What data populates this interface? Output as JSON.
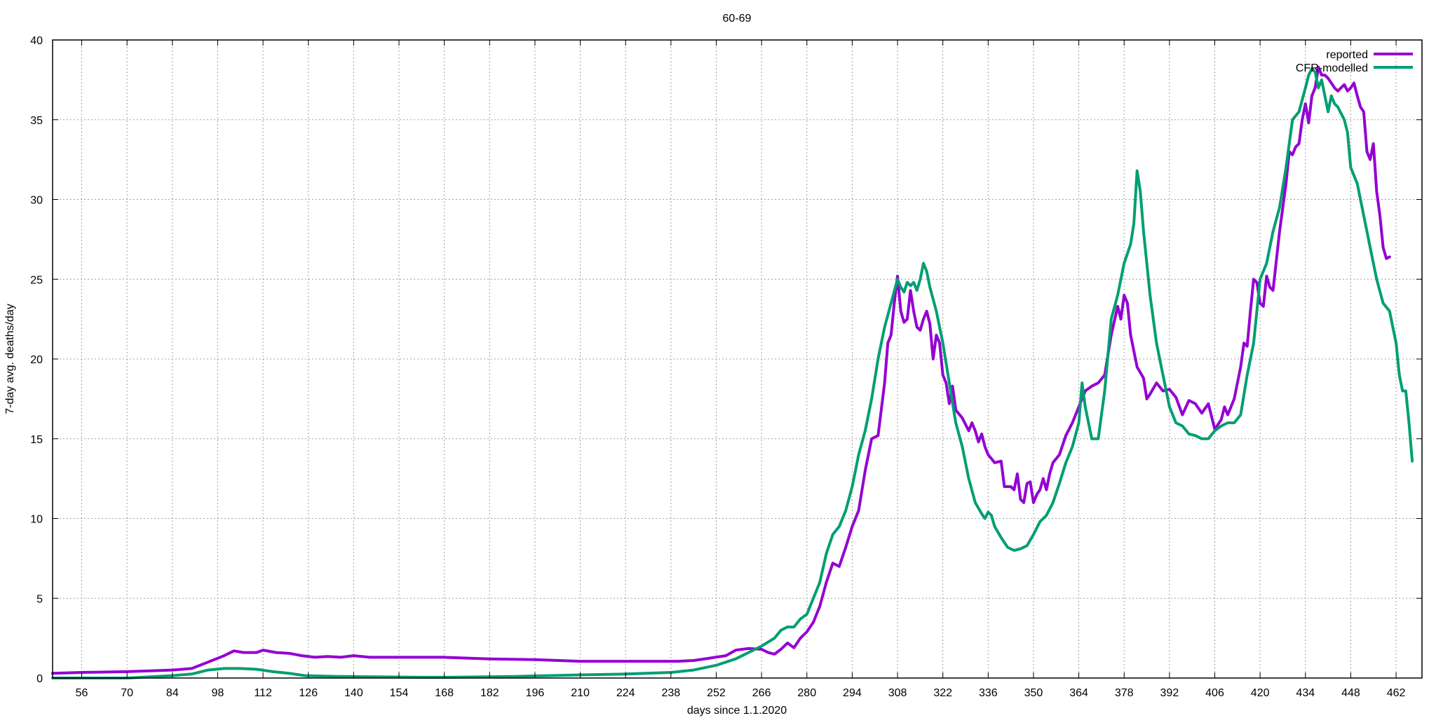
{
  "chart_data": {
    "type": "line",
    "title": "60-69",
    "xlabel": "days since 1.1.2020",
    "ylabel": "7-day avg. deaths/day",
    "xlim": [
      47,
      470
    ],
    "ylim": [
      0,
      40
    ],
    "x_ticks": [
      56,
      70,
      84,
      98,
      112,
      126,
      140,
      154,
      168,
      182,
      196,
      210,
      224,
      238,
      252,
      266,
      280,
      294,
      308,
      322,
      336,
      350,
      364,
      378,
      392,
      406,
      420,
      434,
      448,
      462
    ],
    "y_ticks": [
      0,
      5,
      10,
      15,
      20,
      25,
      30,
      35,
      40
    ],
    "grid": true,
    "legend_position": "top-right",
    "series": [
      {
        "name": "reported",
        "color": "#9400d3",
        "points": [
          [
            47,
            0.3
          ],
          [
            56,
            0.35
          ],
          [
            70,
            0.4
          ],
          [
            84,
            0.5
          ],
          [
            90,
            0.6
          ],
          [
            95,
            1.0
          ],
          [
            100,
            1.4
          ],
          [
            103,
            1.7
          ],
          [
            106,
            1.6
          ],
          [
            110,
            1.6
          ],
          [
            112,
            1.75
          ],
          [
            116,
            1.6
          ],
          [
            120,
            1.55
          ],
          [
            124,
            1.4
          ],
          [
            128,
            1.3
          ],
          [
            132,
            1.35
          ],
          [
            136,
            1.3
          ],
          [
            140,
            1.4
          ],
          [
            145,
            1.3
          ],
          [
            154,
            1.3
          ],
          [
            168,
            1.3
          ],
          [
            182,
            1.2
          ],
          [
            196,
            1.15
          ],
          [
            210,
            1.05
          ],
          [
            224,
            1.05
          ],
          [
            240,
            1.05
          ],
          [
            245,
            1.1
          ],
          [
            250,
            1.25
          ],
          [
            255,
            1.4
          ],
          [
            258,
            1.75
          ],
          [
            262,
            1.85
          ],
          [
            266,
            1.8
          ],
          [
            268,
            1.6
          ],
          [
            270,
            1.5
          ],
          [
            272,
            1.8
          ],
          [
            274,
            2.2
          ],
          [
            276,
            1.9
          ],
          [
            278,
            2.5
          ],
          [
            280,
            2.9
          ],
          [
            282,
            3.5
          ],
          [
            284,
            4.5
          ],
          [
            286,
            6.0
          ],
          [
            288,
            7.2
          ],
          [
            290,
            7.0
          ],
          [
            292,
            8.2
          ],
          [
            294,
            9.5
          ],
          [
            296,
            10.5
          ],
          [
            298,
            13.0
          ],
          [
            300,
            15.0
          ],
          [
            302,
            15.2
          ],
          [
            304,
            18.5
          ],
          [
            305,
            21.0
          ],
          [
            306,
            21.5
          ],
          [
            307,
            23.5
          ],
          [
            308,
            25.2
          ],
          [
            309,
            23.0
          ],
          [
            310,
            22.3
          ],
          [
            311,
            22.5
          ],
          [
            312,
            24.3
          ],
          [
            313,
            23.0
          ],
          [
            314,
            22.0
          ],
          [
            315,
            21.8
          ],
          [
            316,
            22.5
          ],
          [
            317,
            23.0
          ],
          [
            318,
            22.2
          ],
          [
            319,
            20.0
          ],
          [
            320,
            21.5
          ],
          [
            321,
            21.0
          ],
          [
            322,
            19.0
          ],
          [
            323,
            18.5
          ],
          [
            324,
            17.2
          ],
          [
            325,
            18.3
          ],
          [
            326,
            16.8
          ],
          [
            328,
            16.3
          ],
          [
            330,
            15.5
          ],
          [
            331,
            16.0
          ],
          [
            332,
            15.5
          ],
          [
            333,
            14.8
          ],
          [
            334,
            15.3
          ],
          [
            335,
            14.5
          ],
          [
            336,
            14.0
          ],
          [
            338,
            13.5
          ],
          [
            340,
            13.6
          ],
          [
            341,
            12.0
          ],
          [
            343,
            12.0
          ],
          [
            344,
            11.8
          ],
          [
            345,
            12.8
          ],
          [
            346,
            11.2
          ],
          [
            347,
            11.0
          ],
          [
            348,
            12.2
          ],
          [
            349,
            12.3
          ],
          [
            350,
            11.0
          ],
          [
            351,
            11.5
          ],
          [
            352,
            11.8
          ],
          [
            353,
            12.5
          ],
          [
            354,
            11.8
          ],
          [
            355,
            12.8
          ],
          [
            356,
            13.5
          ],
          [
            358,
            14.0
          ],
          [
            360,
            15.2
          ],
          [
            362,
            16.0
          ],
          [
            364,
            17.0
          ],
          [
            366,
            18.0
          ],
          [
            368,
            18.3
          ],
          [
            370,
            18.5
          ],
          [
            372,
            19.0
          ],
          [
            374,
            21.5
          ],
          [
            376,
            23.3
          ],
          [
            377,
            22.5
          ],
          [
            378,
            24.0
          ],
          [
            379,
            23.5
          ],
          [
            380,
            21.5
          ],
          [
            382,
            19.5
          ],
          [
            384,
            18.8
          ],
          [
            385,
            17.5
          ],
          [
            386,
            17.8
          ],
          [
            388,
            18.5
          ],
          [
            390,
            18.0
          ],
          [
            392,
            18.1
          ],
          [
            394,
            17.6
          ],
          [
            396,
            16.5
          ],
          [
            398,
            17.4
          ],
          [
            400,
            17.2
          ],
          [
            402,
            16.6
          ],
          [
            404,
            17.2
          ],
          [
            406,
            15.6
          ],
          [
            408,
            16.2
          ],
          [
            409,
            17.0
          ],
          [
            410,
            16.5
          ],
          [
            412,
            17.5
          ],
          [
            414,
            19.5
          ],
          [
            415,
            21.0
          ],
          [
            416,
            20.8
          ],
          [
            417,
            23.0
          ],
          [
            418,
            25.0
          ],
          [
            419,
            24.8
          ],
          [
            420,
            23.5
          ],
          [
            421,
            23.3
          ],
          [
            422,
            25.2
          ],
          [
            423,
            24.5
          ],
          [
            424,
            24.3
          ],
          [
            426,
            28.0
          ],
          [
            428,
            31.0
          ],
          [
            429,
            33.0
          ],
          [
            430,
            32.8
          ],
          [
            431,
            33.3
          ],
          [
            432,
            33.5
          ],
          [
            433,
            35.0
          ],
          [
            434,
            36.0
          ],
          [
            435,
            34.8
          ],
          [
            436,
            36.5
          ],
          [
            437,
            37.0
          ],
          [
            438,
            38.3
          ],
          [
            439,
            37.8
          ],
          [
            440,
            37.8
          ],
          [
            441,
            37.6
          ],
          [
            442,
            37.3
          ],
          [
            443,
            37.0
          ],
          [
            444,
            36.8
          ],
          [
            446,
            37.2
          ],
          [
            447,
            36.8
          ],
          [
            448,
            37.0
          ],
          [
            449,
            37.3
          ],
          [
            450,
            36.5
          ],
          [
            451,
            35.8
          ],
          [
            452,
            35.5
          ],
          [
            453,
            33.0
          ],
          [
            454,
            32.5
          ],
          [
            455,
            33.5
          ],
          [
            456,
            30.5
          ],
          [
            457,
            29.0
          ],
          [
            458,
            27.0
          ],
          [
            459,
            26.3
          ],
          [
            460,
            26.4
          ]
        ]
      },
      {
        "name": "CFR-modelled",
        "color": "#009e73",
        "points": [
          [
            47,
            0.0
          ],
          [
            70,
            0.0
          ],
          [
            84,
            0.15
          ],
          [
            90,
            0.25
          ],
          [
            95,
            0.5
          ],
          [
            100,
            0.6
          ],
          [
            105,
            0.6
          ],
          [
            110,
            0.55
          ],
          [
            115,
            0.4
          ],
          [
            120,
            0.3
          ],
          [
            125,
            0.15
          ],
          [
            135,
            0.1
          ],
          [
            160,
            0.05
          ],
          [
            170,
            0.05
          ],
          [
            190,
            0.1
          ],
          [
            200,
            0.15
          ],
          [
            210,
            0.2
          ],
          [
            224,
            0.25
          ],
          [
            238,
            0.35
          ],
          [
            245,
            0.5
          ],
          [
            252,
            0.8
          ],
          [
            258,
            1.2
          ],
          [
            262,
            1.6
          ],
          [
            266,
            2.0
          ],
          [
            270,
            2.5
          ],
          [
            272,
            3.0
          ],
          [
            274,
            3.2
          ],
          [
            276,
            3.2
          ],
          [
            278,
            3.7
          ],
          [
            280,
            4.0
          ],
          [
            282,
            5.0
          ],
          [
            284,
            6.0
          ],
          [
            286,
            7.8
          ],
          [
            288,
            9.0
          ],
          [
            290,
            9.5
          ],
          [
            292,
            10.5
          ],
          [
            294,
            12.0
          ],
          [
            296,
            14.0
          ],
          [
            298,
            15.5
          ],
          [
            300,
            17.5
          ],
          [
            302,
            20.0
          ],
          [
            304,
            22.0
          ],
          [
            306,
            23.5
          ],
          [
            308,
            25.0
          ],
          [
            309,
            24.5
          ],
          [
            310,
            24.2
          ],
          [
            311,
            24.8
          ],
          [
            312,
            24.6
          ],
          [
            313,
            24.8
          ],
          [
            314,
            24.3
          ],
          [
            315,
            25.0
          ],
          [
            316,
            26.0
          ],
          [
            317,
            25.5
          ],
          [
            318,
            24.5
          ],
          [
            320,
            23.0
          ],
          [
            322,
            21.0
          ],
          [
            324,
            18.5
          ],
          [
            326,
            16.0
          ],
          [
            328,
            14.5
          ],
          [
            330,
            12.5
          ],
          [
            332,
            11.0
          ],
          [
            334,
            10.3
          ],
          [
            335,
            10.0
          ],
          [
            336,
            10.4
          ],
          [
            337,
            10.2
          ],
          [
            338,
            9.5
          ],
          [
            340,
            8.8
          ],
          [
            342,
            8.2
          ],
          [
            344,
            8.0
          ],
          [
            346,
            8.1
          ],
          [
            348,
            8.3
          ],
          [
            350,
            9.0
          ],
          [
            352,
            9.8
          ],
          [
            354,
            10.2
          ],
          [
            356,
            11.0
          ],
          [
            358,
            12.2
          ],
          [
            360,
            13.5
          ],
          [
            362,
            14.5
          ],
          [
            364,
            16.0
          ],
          [
            365,
            18.5
          ],
          [
            366,
            17.0
          ],
          [
            368,
            15.0
          ],
          [
            370,
            15.0
          ],
          [
            372,
            18.0
          ],
          [
            374,
            22.5
          ],
          [
            376,
            24.0
          ],
          [
            378,
            26.0
          ],
          [
            380,
            27.2
          ],
          [
            381,
            28.5
          ],
          [
            382,
            31.8
          ],
          [
            383,
            30.5
          ],
          [
            384,
            28.0
          ],
          [
            386,
            24.0
          ],
          [
            388,
            21.0
          ],
          [
            390,
            19.0
          ],
          [
            392,
            17.0
          ],
          [
            394,
            16.0
          ],
          [
            396,
            15.8
          ],
          [
            398,
            15.3
          ],
          [
            400,
            15.2
          ],
          [
            402,
            15.0
          ],
          [
            404,
            15.0
          ],
          [
            406,
            15.5
          ],
          [
            408,
            15.8
          ],
          [
            410,
            16.0
          ],
          [
            412,
            16.0
          ],
          [
            414,
            16.5
          ],
          [
            416,
            19.0
          ],
          [
            418,
            21.0
          ],
          [
            420,
            25.0
          ],
          [
            422,
            26.0
          ],
          [
            424,
            28.0
          ],
          [
            426,
            29.5
          ],
          [
            428,
            32.0
          ],
          [
            430,
            35.0
          ],
          [
            432,
            35.5
          ],
          [
            434,
            37.0
          ],
          [
            435,
            37.8
          ],
          [
            436,
            38.2
          ],
          [
            437,
            38.0
          ],
          [
            438,
            37.0
          ],
          [
            439,
            37.5
          ],
          [
            440,
            36.5
          ],
          [
            441,
            35.5
          ],
          [
            442,
            36.5
          ],
          [
            443,
            36.0
          ],
          [
            444,
            35.8
          ],
          [
            446,
            35.0
          ],
          [
            447,
            34.2
          ],
          [
            448,
            32.0
          ],
          [
            450,
            31.0
          ],
          [
            452,
            29.0
          ],
          [
            454,
            27.0
          ],
          [
            456,
            25.0
          ],
          [
            458,
            23.5
          ],
          [
            460,
            23.0
          ],
          [
            461,
            22.0
          ],
          [
            462,
            21.0
          ],
          [
            463,
            19.0
          ],
          [
            464,
            18.0
          ],
          [
            465,
            18.0
          ],
          [
            466,
            16.0
          ],
          [
            467,
            13.6
          ]
        ]
      }
    ]
  }
}
